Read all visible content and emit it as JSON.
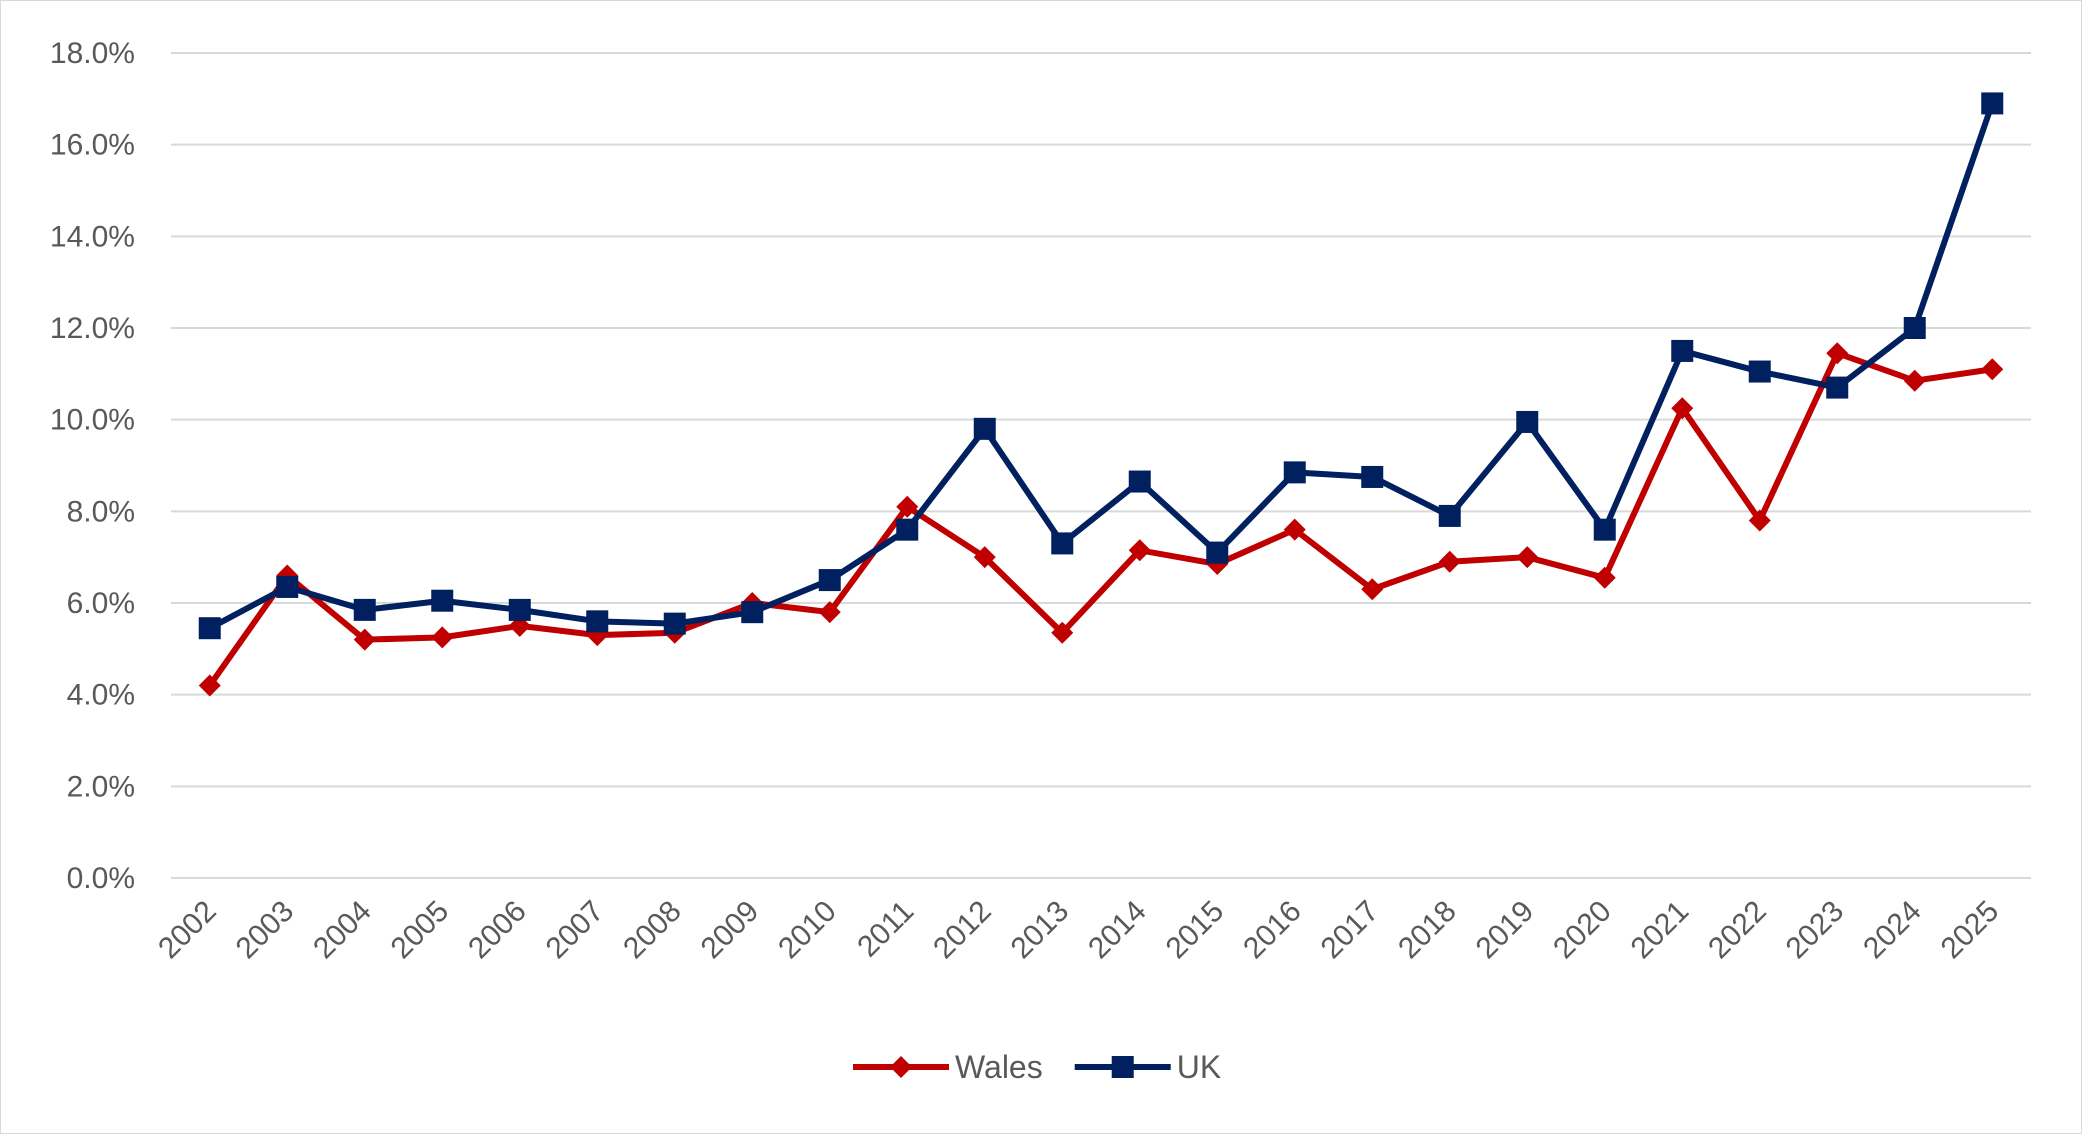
{
  "chart_data": {
    "type": "line",
    "title": "",
    "xlabel": "",
    "ylabel": "",
    "categories": [
      "2002",
      "2003",
      "2004",
      "2005",
      "2006",
      "2007",
      "2008",
      "2009",
      "2010",
      "2011",
      "2012",
      "2013",
      "2014",
      "2015",
      "2016",
      "2017",
      "2018",
      "2019",
      "2020",
      "2021",
      "2022",
      "2023",
      "2024",
      "2025"
    ],
    "ylim": [
      0,
      18
    ],
    "yticks": [
      "0.0%",
      "2.0%",
      "4.0%",
      "6.0%",
      "8.0%",
      "10.0%",
      "12.0%",
      "14.0%",
      "16.0%",
      "18.0%"
    ],
    "grid": true,
    "legend_position": "bottom",
    "series": [
      {
        "name": "Wales",
        "color": "#c00000",
        "marker": "diamond",
        "values": [
          4.2,
          6.6,
          5.2,
          5.25,
          5.5,
          5.3,
          5.35,
          6.0,
          5.8,
          8.1,
          7.0,
          5.35,
          7.15,
          6.85,
          7.6,
          6.3,
          6.9,
          7.0,
          6.55,
          10.25,
          7.8,
          11.45,
          10.85,
          11.1
        ]
      },
      {
        "name": "UK",
        "color": "#002060",
        "marker": "square",
        "values": [
          5.45,
          6.35,
          5.85,
          6.05,
          5.85,
          5.6,
          5.55,
          5.8,
          6.5,
          7.6,
          9.8,
          7.3,
          8.65,
          7.1,
          8.85,
          8.75,
          7.9,
          9.95,
          7.6,
          11.5,
          11.05,
          10.7,
          12.0,
          16.9
        ]
      }
    ]
  }
}
